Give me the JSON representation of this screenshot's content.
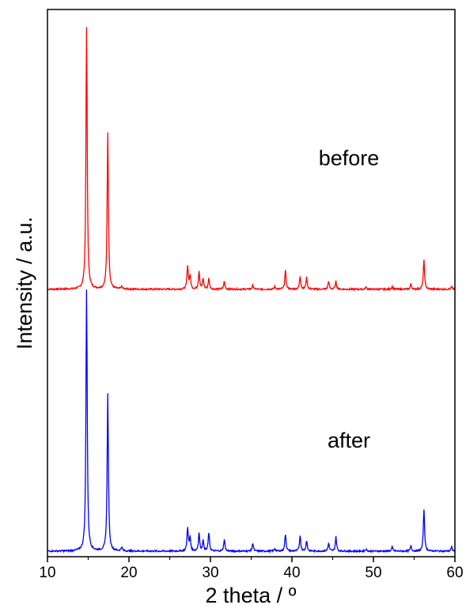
{
  "chart_data": {
    "type": "line",
    "xlabel": "2 theta / º",
    "ylabel": "Intensity / a.u.",
    "xlim": [
      10,
      60
    ],
    "x_ticks": [
      "10",
      "20",
      "30",
      "40",
      "50",
      "60"
    ],
    "y_ticks": [],
    "ylim": [
      0,
      2.05
    ],
    "grid": false,
    "legend": "none",
    "series": [
      {
        "name": "before",
        "color": "#ff0000",
        "baseline": 1.0,
        "peaks": [
          {
            "x": 14.8,
            "y": 1.0
          },
          {
            "x": 17.4,
            "y": 0.6
          },
          {
            "x": 19.1,
            "y": 0.01
          },
          {
            "x": 27.2,
            "y": 0.09
          },
          {
            "x": 27.5,
            "y": 0.05
          },
          {
            "x": 28.6,
            "y": 0.07
          },
          {
            "x": 29.1,
            "y": 0.04
          },
          {
            "x": 29.8,
            "y": 0.04
          },
          {
            "x": 31.7,
            "y": 0.03
          },
          {
            "x": 35.2,
            "y": 0.015
          },
          {
            "x": 37.9,
            "y": 0.01
          },
          {
            "x": 39.2,
            "y": 0.07
          },
          {
            "x": 41.0,
            "y": 0.05
          },
          {
            "x": 41.8,
            "y": 0.045
          },
          {
            "x": 44.5,
            "y": 0.03
          },
          {
            "x": 45.4,
            "y": 0.03
          },
          {
            "x": 49.1,
            "y": 0.008
          },
          {
            "x": 52.3,
            "y": 0.01
          },
          {
            "x": 54.6,
            "y": 0.02
          },
          {
            "x": 56.2,
            "y": 0.11
          },
          {
            "x": 59.6,
            "y": 0.01
          }
        ]
      },
      {
        "name": "after",
        "color": "#0000ff",
        "baseline": 0.0,
        "peaks": [
          {
            "x": 14.8,
            "y": 1.0
          },
          {
            "x": 17.4,
            "y": 0.6
          },
          {
            "x": 19.1,
            "y": 0.015
          },
          {
            "x": 27.2,
            "y": 0.09
          },
          {
            "x": 27.5,
            "y": 0.05
          },
          {
            "x": 28.6,
            "y": 0.07
          },
          {
            "x": 29.1,
            "y": 0.04
          },
          {
            "x": 29.8,
            "y": 0.07
          },
          {
            "x": 31.7,
            "y": 0.045
          },
          {
            "x": 35.2,
            "y": 0.03
          },
          {
            "x": 37.9,
            "y": 0.01
          },
          {
            "x": 39.2,
            "y": 0.065
          },
          {
            "x": 41.0,
            "y": 0.06
          },
          {
            "x": 41.8,
            "y": 0.04
          },
          {
            "x": 44.5,
            "y": 0.03
          },
          {
            "x": 45.4,
            "y": 0.055
          },
          {
            "x": 49.1,
            "y": 0.008
          },
          {
            "x": 52.3,
            "y": 0.015
          },
          {
            "x": 54.6,
            "y": 0.02
          },
          {
            "x": 56.2,
            "y": 0.16
          },
          {
            "x": 59.6,
            "y": 0.015
          }
        ]
      }
    ]
  }
}
